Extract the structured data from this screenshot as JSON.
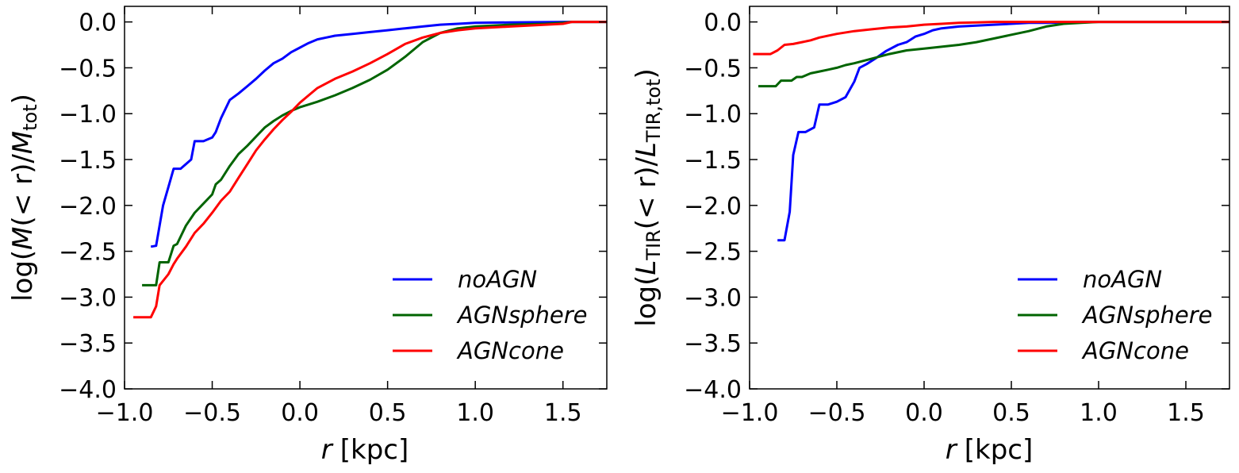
{
  "chart_data": [
    {
      "type": "line",
      "title": "",
      "xlabel": "r [kpc]",
      "xlabel_var": "r",
      "xlabel_unit": "[kpc]",
      "ylabel": "log(M(< r)/M_tot)",
      "ylabel_parts": {
        "pre": "log(",
        "var1": "M",
        "mid": "(< r)/",
        "var2": "M",
        "sub": "tot",
        "post": ")"
      },
      "xlim": [
        -1.0,
        1.75
      ],
      "ylim": [
        -4.0,
        0.17
      ],
      "xticks": [
        -1.0,
        -0.5,
        0.0,
        0.5,
        1.0,
        1.5
      ],
      "xtick_labels": [
        "−1.0",
        "−0.5",
        "0.0",
        "0.5",
        "1.0",
        "1.5"
      ],
      "yticks": [
        0.0,
        -0.5,
        -1.0,
        -1.5,
        -2.0,
        -2.5,
        -3.0,
        -3.5,
        -4.0
      ],
      "ytick_labels": [
        "0.0",
        "−0.5",
        "−1.0",
        "−1.5",
        "−2.0",
        "−2.5",
        "−3.0",
        "−3.5",
        "−4.0"
      ],
      "legend_position": "lower-right",
      "series": [
        {
          "name": "noAGN",
          "color": "#0000ff",
          "x": [
            -0.85,
            -0.82,
            -0.78,
            -0.75,
            -0.72,
            -0.68,
            -0.62,
            -0.6,
            -0.55,
            -0.5,
            -0.48,
            -0.45,
            -0.4,
            -0.35,
            -0.3,
            -0.25,
            -0.2,
            -0.15,
            -0.1,
            -0.05,
            0.0,
            0.05,
            0.1,
            0.15,
            0.2,
            0.3,
            0.4,
            0.5,
            0.6,
            0.7,
            0.8,
            0.9,
            1.0,
            1.2,
            1.4,
            1.55,
            1.65,
            1.75
          ],
          "y": [
            -2.45,
            -2.44,
            -2.0,
            -1.8,
            -1.6,
            -1.6,
            -1.5,
            -1.3,
            -1.3,
            -1.26,
            -1.2,
            -1.05,
            -0.85,
            -0.78,
            -0.7,
            -0.62,
            -0.53,
            -0.45,
            -0.4,
            -0.33,
            -0.28,
            -0.23,
            -0.19,
            -0.17,
            -0.15,
            -0.13,
            -0.11,
            -0.09,
            -0.07,
            -0.05,
            -0.03,
            -0.02,
            -0.01,
            -0.005,
            -0.002,
            0.0,
            0.0,
            0.0
          ]
        },
        {
          "name": "AGNsphere",
          "color": "#006400",
          "x": [
            -0.9,
            -0.82,
            -0.8,
            -0.75,
            -0.72,
            -0.7,
            -0.65,
            -0.6,
            -0.55,
            -0.5,
            -0.48,
            -0.45,
            -0.4,
            -0.35,
            -0.3,
            -0.25,
            -0.2,
            -0.15,
            -0.1,
            -0.05,
            0.0,
            0.05,
            0.1,
            0.2,
            0.3,
            0.4,
            0.5,
            0.6,
            0.7,
            0.8,
            0.9,
            1.0,
            1.2,
            1.4,
            1.5,
            1.55,
            1.65,
            1.75
          ],
          "y": [
            -2.87,
            -2.87,
            -2.62,
            -2.62,
            -2.44,
            -2.42,
            -2.22,
            -2.08,
            -1.98,
            -1.88,
            -1.77,
            -1.72,
            -1.57,
            -1.44,
            -1.35,
            -1.25,
            -1.15,
            -1.08,
            -1.02,
            -0.97,
            -0.93,
            -0.9,
            -0.87,
            -0.8,
            -0.72,
            -0.63,
            -0.52,
            -0.38,
            -0.22,
            -0.12,
            -0.07,
            -0.05,
            -0.03,
            -0.02,
            -0.01,
            0.0,
            0.0,
            0.0
          ]
        },
        {
          "name": "AGNcone",
          "color": "#ff0000",
          "x": [
            -0.95,
            -0.85,
            -0.82,
            -0.8,
            -0.75,
            -0.72,
            -0.7,
            -0.65,
            -0.6,
            -0.55,
            -0.5,
            -0.45,
            -0.4,
            -0.35,
            -0.3,
            -0.25,
            -0.2,
            -0.15,
            -0.1,
            -0.05,
            0.0,
            0.05,
            0.1,
            0.2,
            0.3,
            0.4,
            0.5,
            0.6,
            0.7,
            0.8,
            0.9,
            1.0,
            1.2,
            1.4,
            1.5,
            1.55,
            1.65,
            1.75
          ],
          "y": [
            -3.22,
            -3.22,
            -3.1,
            -2.87,
            -2.75,
            -2.64,
            -2.58,
            -2.45,
            -2.3,
            -2.2,
            -2.08,
            -1.95,
            -1.85,
            -1.7,
            -1.55,
            -1.4,
            -1.28,
            -1.17,
            -1.07,
            -0.98,
            -0.88,
            -0.8,
            -0.72,
            -0.62,
            -0.54,
            -0.45,
            -0.35,
            -0.24,
            -0.17,
            -0.12,
            -0.09,
            -0.07,
            -0.05,
            -0.03,
            -0.02,
            0.0,
            0.0,
            0.0
          ]
        }
      ]
    },
    {
      "type": "line",
      "title": "",
      "xlabel": "r [kpc]",
      "xlabel_var": "r",
      "xlabel_unit": "[kpc]",
      "ylabel": "log(L_TIR(< r)/L_TIR,tot)",
      "ylabel_parts": {
        "pre": "log(",
        "var1": "L",
        "sub1": "TIR",
        "mid": "(< r)/",
        "var2": "L",
        "sub": "TIR,tot",
        "post": ")"
      },
      "xlim": [
        -1.0,
        1.75
      ],
      "ylim": [
        -4.0,
        0.17
      ],
      "xticks": [
        -1.0,
        -0.5,
        0.0,
        0.5,
        1.0,
        1.5
      ],
      "xtick_labels": [
        "−1.0",
        "−0.5",
        "0.0",
        "0.5",
        "1.0",
        "1.5"
      ],
      "yticks": [
        0.0,
        -0.5,
        -1.0,
        -1.5,
        -2.0,
        -2.5,
        -3.0,
        -3.5,
        -4.0
      ],
      "ytick_labels": [
        "0.0",
        "−0.5",
        "−1.0",
        "−1.5",
        "−2.0",
        "−2.5",
        "−3.0",
        "−3.5",
        "−4.0"
      ],
      "legend_position": "lower-right",
      "series": [
        {
          "name": "noAGN",
          "color": "#0000ff",
          "x": [
            -0.84,
            -0.8,
            -0.77,
            -0.75,
            -0.72,
            -0.68,
            -0.63,
            -0.6,
            -0.58,
            -0.55,
            -0.5,
            -0.45,
            -0.4,
            -0.37,
            -0.33,
            -0.28,
            -0.22,
            -0.15,
            -0.1,
            -0.05,
            0.0,
            0.05,
            0.1,
            0.2,
            0.3,
            0.4,
            0.5,
            0.6,
            0.7,
            0.8,
            0.9,
            1.0,
            1.2,
            1.4,
            1.5,
            1.6,
            1.75
          ],
          "y": [
            -2.38,
            -2.38,
            -2.07,
            -1.45,
            -1.2,
            -1.2,
            -1.15,
            -0.9,
            -0.9,
            -0.9,
            -0.87,
            -0.82,
            -0.65,
            -0.5,
            -0.46,
            -0.4,
            -0.32,
            -0.25,
            -0.22,
            -0.16,
            -0.13,
            -0.09,
            -0.07,
            -0.05,
            -0.04,
            -0.03,
            -0.02,
            -0.01,
            -0.01,
            -0.005,
            0.0,
            0.0,
            0.0,
            0.0,
            0.0,
            0.0,
            0.0
          ]
        },
        {
          "name": "AGNsphere",
          "color": "#006400",
          "x": [
            -0.95,
            -0.88,
            -0.85,
            -0.82,
            -0.76,
            -0.73,
            -0.7,
            -0.65,
            -0.6,
            -0.55,
            -0.5,
            -0.45,
            -0.4,
            -0.3,
            -0.2,
            -0.1,
            0.0,
            0.1,
            0.2,
            0.3,
            0.4,
            0.5,
            0.6,
            0.7,
            0.8,
            0.9,
            1.0,
            1.2,
            1.4,
            1.5,
            1.6,
            1.75
          ],
          "y": [
            -0.7,
            -0.7,
            -0.7,
            -0.64,
            -0.64,
            -0.6,
            -0.6,
            -0.56,
            -0.54,
            -0.52,
            -0.5,
            -0.47,
            -0.45,
            -0.4,
            -0.35,
            -0.31,
            -0.29,
            -0.27,
            -0.25,
            -0.22,
            -0.18,
            -0.14,
            -0.1,
            -0.05,
            -0.02,
            -0.01,
            0.0,
            0.0,
            0.0,
            0.0,
            0.0,
            0.0
          ]
        },
        {
          "name": "AGNcone",
          "color": "#ff0000",
          "x": [
            -0.98,
            -0.88,
            -0.84,
            -0.8,
            -0.75,
            -0.7,
            -0.65,
            -0.6,
            -0.5,
            -0.4,
            -0.3,
            -0.2,
            -0.1,
            0.0,
            0.1,
            0.2,
            0.3,
            0.4,
            0.5,
            0.6,
            0.7,
            0.8,
            1.0,
            1.2,
            1.4,
            1.6,
            1.75
          ],
          "y": [
            -0.35,
            -0.35,
            -0.31,
            -0.25,
            -0.24,
            -0.22,
            -0.2,
            -0.17,
            -0.13,
            -0.1,
            -0.08,
            -0.06,
            -0.05,
            -0.03,
            -0.02,
            -0.01,
            -0.005,
            0.0,
            0.0,
            0.0,
            0.0,
            0.0,
            0.0,
            0.0,
            0.0,
            0.0,
            0.0
          ]
        }
      ]
    }
  ]
}
